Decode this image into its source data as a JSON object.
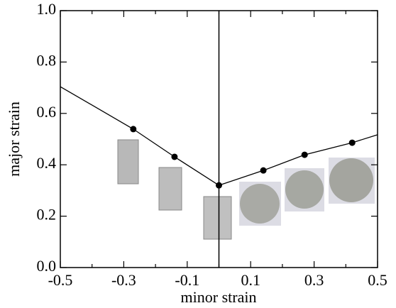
{
  "chart_data": {
    "type": "line",
    "xlabel": "minor strain",
    "ylabel": "major strain",
    "xlim": [
      -0.5,
      0.5
    ],
    "ylim": [
      0,
      1.0
    ],
    "xticks": [
      -0.5,
      -0.3,
      -0.1,
      0.1,
      0.3,
      0.5
    ],
    "xticks_minor": [
      -0.4,
      -0.2,
      0,
      0.2,
      0.4
    ],
    "yticks": [
      {
        "value": 0,
        "label": "0.0"
      },
      0.2,
      0.4,
      0.6,
      0.8,
      {
        "value": 1.0,
        "label": "1.0"
      }
    ],
    "vline_x": 0,
    "color": "#000000",
    "line": {
      "x": [
        -0.5,
        -0.27,
        -0.14,
        0,
        0.14,
        0.27,
        0.42,
        0.5
      ],
      "y": [
        0.704,
        0.539,
        0.431,
        0.32,
        0.378,
        0.439,
        0.486,
        0.517
      ]
    },
    "points": {
      "x": [
        -0.27,
        -0.14,
        0,
        0.14,
        0.27,
        0.42
      ],
      "y": [
        0.539,
        0.431,
        0.32,
        0.378,
        0.439,
        0.486
      ]
    }
  }
}
